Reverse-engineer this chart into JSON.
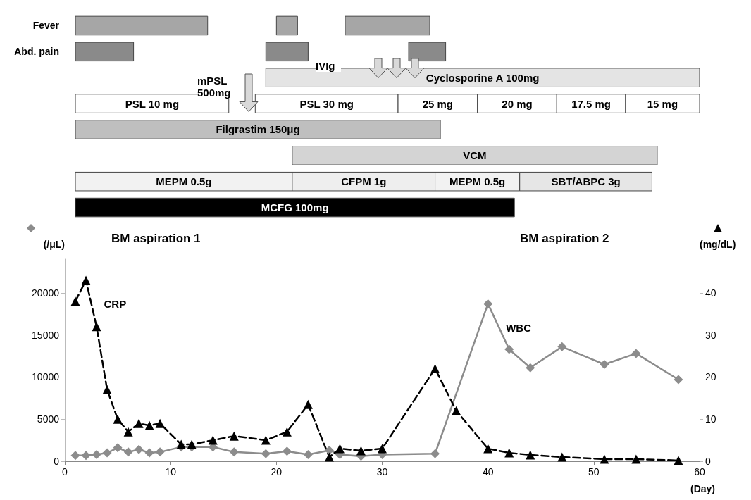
{
  "chart_data": [
    {
      "type": "bar",
      "orientation": "horizontal",
      "categories": [
        "Fever",
        "Abd. pain",
        null,
        null,
        null,
        null,
        null,
        null
      ],
      "xlim": [
        0,
        60
      ],
      "tick_labels": "y",
      "series": [
        {
          "base": [
            1,
            1,
            null,
            null,
            null,
            null,
            null,
            null
          ],
          "values": [
            12.5,
            5.5,
            null,
            null,
            null,
            null,
            null,
            null
          ],
          "colors": [
            "#a6a6a6",
            "#8a8a8a",
            null,
            null,
            null,
            null,
            null,
            null
          ]
        },
        {
          "base": [
            20,
            19,
            null,
            null,
            null,
            null,
            null,
            null
          ],
          "values": [
            2,
            4,
            null,
            null,
            null,
            null,
            null,
            null
          ],
          "colors": [
            "#a6a6a6",
            "#8a8a8a",
            null,
            null,
            null,
            null,
            null,
            null
          ]
        },
        {
          "base": [
            26.5,
            32.5,
            null,
            null,
            null,
            null,
            null,
            null
          ],
          "values": [
            8,
            3.5,
            null,
            null,
            null,
            null,
            null,
            null
          ],
          "colors": [
            "#a6a6a6",
            "#8a8a8a",
            null,
            null,
            null,
            null,
            null,
            null
          ]
        },
        {
          "name": "Cyclosporine A 100mg",
          "color": "#e4e4e4",
          "base": [
            null,
            null,
            19,
            null,
            null,
            null,
            null,
            null
          ],
          "values": [
            null,
            null,
            41,
            null,
            null,
            null,
            null,
            null
          ]
        },
        {
          "name": "PSL 10 mg",
          "color": "#ffffff",
          "base": [
            null,
            null,
            null,
            1,
            null,
            null,
            null,
            null
          ],
          "values": [
            null,
            null,
            null,
            14.5,
            null,
            null,
            null,
            null
          ]
        },
        {
          "name": "PSL 30 mg",
          "color": "#ffffff",
          "base": [
            null,
            null,
            null,
            18,
            null,
            null,
            null,
            null
          ],
          "values": [
            null,
            null,
            null,
            13.5,
            null,
            null,
            null,
            null
          ]
        },
        {
          "name": "25 mg",
          "color": "#ffffff",
          "base": [
            null,
            null,
            null,
            31.5,
            null,
            null,
            null,
            null
          ],
          "values": [
            null,
            null,
            null,
            7.5,
            null,
            null,
            null,
            null
          ]
        },
        {
          "name": "20 mg",
          "color": "#ffffff",
          "base": [
            null,
            null,
            null,
            39,
            null,
            null,
            null,
            null
          ],
          "values": [
            null,
            null,
            null,
            7.5,
            null,
            null,
            null,
            null
          ]
        },
        {
          "name": "17.5 mg",
          "color": "#ffffff",
          "base": [
            null,
            null,
            null,
            46.5,
            null,
            null,
            null,
            null
          ],
          "values": [
            null,
            null,
            null,
            6.5,
            null,
            null,
            null,
            null
          ]
        },
        {
          "name": "15 mg",
          "color": "#ffffff",
          "base": [
            null,
            null,
            null,
            53,
            null,
            null,
            null,
            null
          ],
          "values": [
            null,
            null,
            null,
            7,
            null,
            null,
            null,
            null
          ]
        },
        {
          "name": "Filgrastim 150μg",
          "color": "#bfbfbf",
          "base": [
            null,
            null,
            null,
            null,
            1,
            null,
            null,
            null
          ],
          "values": [
            null,
            null,
            null,
            null,
            34.5,
            null,
            null,
            null
          ]
        },
        {
          "name": "VCM",
          "color": "#d4d4d4",
          "base": [
            null,
            null,
            null,
            null,
            null,
            21.5,
            null,
            null
          ],
          "values": [
            null,
            null,
            null,
            null,
            null,
            34.5,
            null,
            null
          ]
        },
        {
          "name": "MEPM 0.5g",
          "color": "#f2f2f2",
          "base": [
            null,
            null,
            null,
            null,
            null,
            null,
            1,
            null
          ],
          "values": [
            null,
            null,
            null,
            null,
            null,
            null,
            20.5,
            null
          ]
        },
        {
          "name": "CFPM 1g",
          "color": "#eeeeee",
          "base": [
            null,
            null,
            null,
            null,
            null,
            null,
            21.5,
            null
          ],
          "values": [
            null,
            null,
            null,
            null,
            null,
            null,
            13.5,
            null
          ]
        },
        {
          "name": "MEPM 0.5g",
          "color": "#f2f2f2",
          "base": [
            null,
            null,
            null,
            null,
            null,
            null,
            35,
            null
          ],
          "values": [
            null,
            null,
            null,
            null,
            null,
            null,
            8,
            null
          ]
        },
        {
          "name": "SBT/ABPC 3g",
          "color": "#e6e6e6",
          "base": [
            null,
            null,
            null,
            null,
            null,
            null,
            43,
            null
          ],
          "values": [
            null,
            null,
            null,
            null,
            null,
            null,
            12.5,
            null
          ]
        },
        {
          "name": "MCFG 100mg",
          "color": "#000000",
          "base": [
            null,
            null,
            null,
            null,
            null,
            null,
            null,
            1
          ],
          "values": [
            null,
            null,
            null,
            null,
            null,
            null,
            null,
            41.5
          ]
        }
      ],
      "annotations": [
        "IVIg",
        "mPSL 500mg"
      ]
    },
    {
      "type": "line",
      "xlim": [
        0,
        60
      ],
      "xticks": [
        0,
        10,
        20,
        30,
        40,
        50,
        60
      ],
      "ylim": [
        0,
        24000
      ],
      "yticks": [
        0,
        5000,
        10000,
        15000,
        20000
      ],
      "y2lim": [
        0,
        48
      ],
      "y2ticks": [
        0,
        10,
        20,
        30,
        40
      ],
      "xlabel": "(Day)",
      "ylabel": "(/μL)",
      "y2label": "(mg/dL)",
      "grid": false,
      "legend": false,
      "annotations": [
        "BM aspiration 1",
        "BM aspiration 2"
      ],
      "series": [
        {
          "name": "WBC",
          "color": "#8c8c8c",
          "marker": "diamond",
          "line_style": "solid",
          "x": [
            1,
            2,
            3,
            4,
            5,
            6,
            7,
            8,
            9,
            11,
            12,
            14,
            16,
            19,
            21,
            23,
            25,
            26,
            28,
            30,
            35,
            40,
            42,
            44,
            47,
            51,
            54,
            58
          ],
          "values": [
            700,
            700,
            800,
            1000,
            1600,
            1100,
            1400,
            1000,
            1100,
            1700,
            1700,
            1700,
            1100,
            900,
            1200,
            800,
            1300,
            800,
            600,
            800,
            900,
            18700,
            13300,
            11100,
            13600,
            11500,
            12800,
            9700
          ]
        },
        {
          "name": "CRP",
          "axis": "y2",
          "color": "#000000",
          "marker": "triangle",
          "line_style": "dashed",
          "x": [
            1,
            2,
            3,
            4,
            5,
            6,
            7,
            8,
            9,
            11,
            12,
            14,
            16,
            19,
            21,
            23,
            25,
            26,
            28,
            30,
            35,
            37,
            40,
            42,
            44,
            47,
            51,
            54,
            58
          ],
          "values": [
            38,
            43,
            32,
            17,
            10,
            7,
            9,
            8.5,
            9,
            4,
            4,
            5,
            6,
            5,
            7,
            13.5,
            1,
            3,
            2.5,
            3,
            22,
            12,
            3,
            2,
            1.5,
            1,
            0.5,
            0.5,
            0.2
          ]
        }
      ]
    }
  ]
}
